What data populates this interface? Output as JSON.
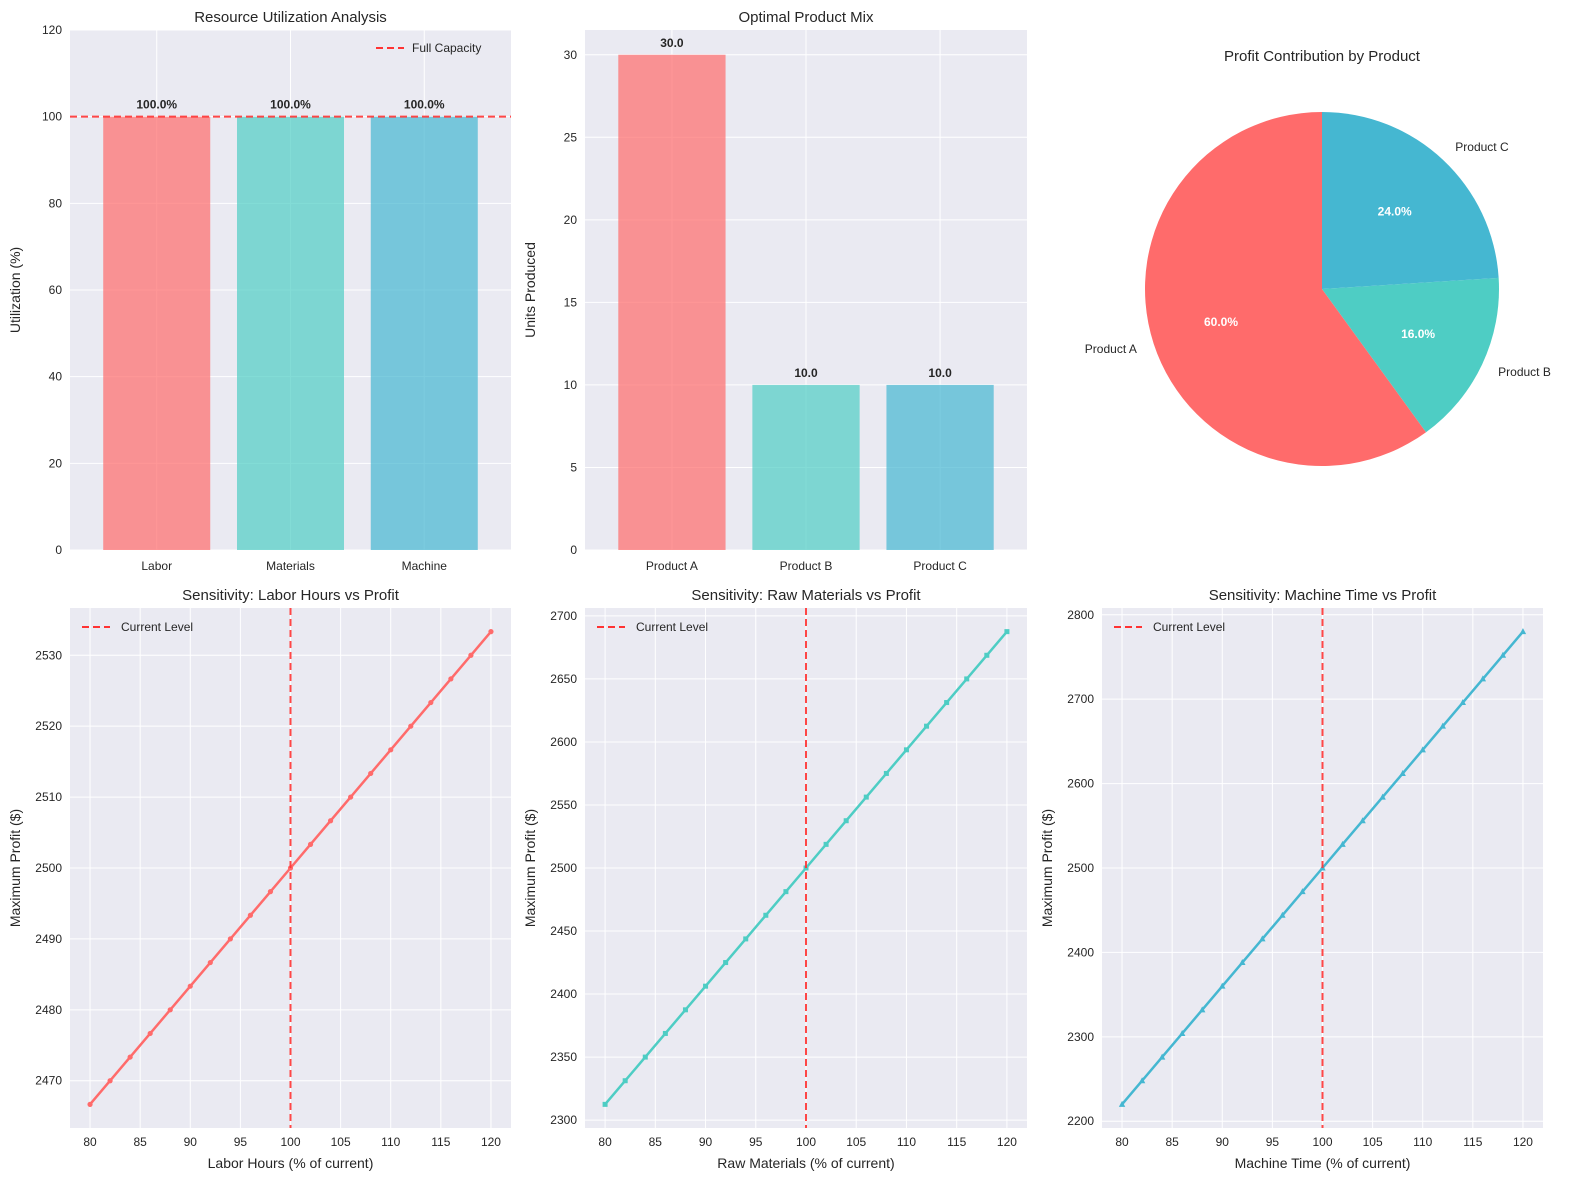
{
  "colors": {
    "a": "#FF6B6B",
    "b": "#4ECDC4",
    "c": "#45B7D1",
    "ref": "#FF3333"
  },
  "chart_data": [
    {
      "type": "bar",
      "title": "Resource Utilization Analysis",
      "xlabel": "",
      "ylabel": "Utilization (%)",
      "categories": [
        "Labor",
        "Materials",
        "Machine"
      ],
      "values": [
        100,
        100,
        100
      ],
      "data_labels": [
        "100.0%",
        "100.0%",
        "100.0%"
      ],
      "ylim": [
        0,
        120
      ],
      "yticks": [
        0,
        20,
        40,
        60,
        80,
        100,
        120
      ],
      "reference_line": {
        "y": 100,
        "label": "Full Capacity"
      },
      "legend": "top-right",
      "grid": true
    },
    {
      "type": "bar",
      "title": "Optimal Product Mix",
      "xlabel": "",
      "ylabel": "Units Produced",
      "categories": [
        "Product A",
        "Product B",
        "Product C"
      ],
      "values": [
        30,
        10,
        10
      ],
      "data_labels": [
        "30.0",
        "10.0",
        "10.0"
      ],
      "ylim": [
        0,
        31.5
      ],
      "yticks": [
        0,
        5,
        10,
        15,
        20,
        25,
        30
      ],
      "grid": true
    },
    {
      "type": "pie",
      "title": "Profit Contribution by Product",
      "labels": [
        "Product A",
        "Product B",
        "Product C"
      ],
      "values": [
        60,
        16,
        24
      ],
      "pct_labels": [
        "60.0%",
        "16.0%",
        "24.0%"
      ],
      "startangle": 90
    },
    {
      "type": "line",
      "title": "Sensitivity: Labor Hours vs Profit",
      "xlabel": "Labor Hours (% of current)",
      "ylabel": "Maximum Profit ($)",
      "x_start": 80,
      "x_end": 120,
      "x_step": 2,
      "y_start": 2466.67,
      "y_end": 2533.33,
      "marker": "circle",
      "xticks": [
        80,
        85,
        90,
        95,
        100,
        105,
        110,
        115,
        120
      ],
      "yticks": [
        2470,
        2480,
        2490,
        2500,
        2510,
        2520,
        2530
      ],
      "reference_line": {
        "x": 100,
        "label": "Current Level"
      },
      "legend": "top-left",
      "grid": true
    },
    {
      "type": "line",
      "title": "Sensitivity: Raw Materials vs Profit",
      "xlabel": "Raw Materials (% of current)",
      "ylabel": "Maximum Profit ($)",
      "x_start": 80,
      "x_end": 120,
      "x_step": 2,
      "y_start": 2312.5,
      "y_end": 2687.5,
      "marker": "square",
      "xticks": [
        80,
        85,
        90,
        95,
        100,
        105,
        110,
        115,
        120
      ],
      "yticks": [
        2300,
        2350,
        2400,
        2450,
        2500,
        2550,
        2600,
        2650,
        2700
      ],
      "reference_line": {
        "x": 100,
        "label": "Current Level"
      },
      "legend": "top-left",
      "grid": true
    },
    {
      "type": "line",
      "title": "Sensitivity: Machine Time vs Profit",
      "xlabel": "Machine Time (% of current)",
      "ylabel": "Maximum Profit ($)",
      "x_start": 80,
      "x_end": 120,
      "x_step": 2,
      "y_start": 2220,
      "y_end": 2780,
      "marker": "triangle",
      "xticks": [
        80,
        85,
        90,
        95,
        100,
        105,
        110,
        115,
        120
      ],
      "yticks": [
        2200,
        2300,
        2400,
        2500,
        2600,
        2700,
        2800
      ],
      "reference_line": {
        "x": 100,
        "label": "Current Level"
      },
      "legend": "top-left",
      "grid": true
    }
  ]
}
